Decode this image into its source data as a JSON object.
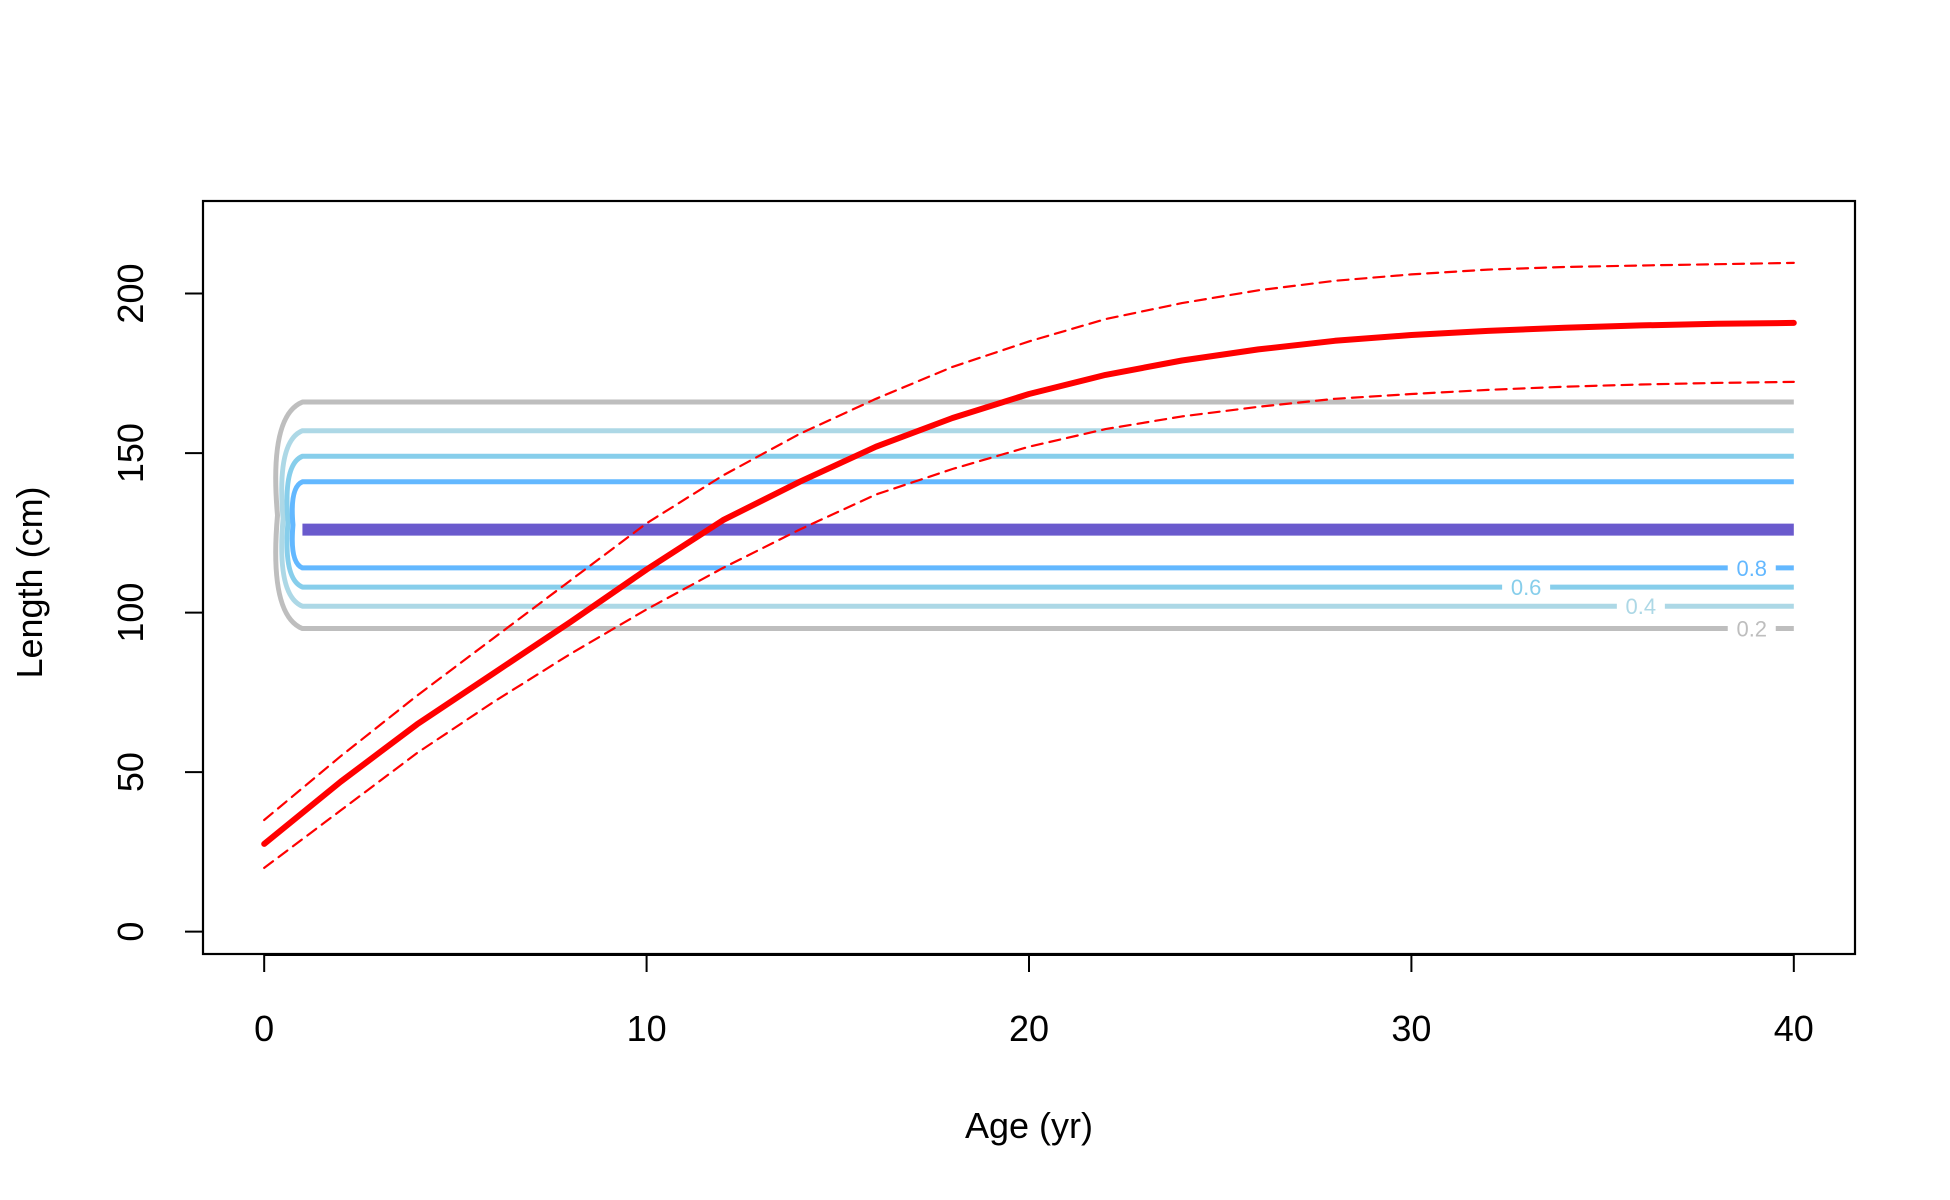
{
  "chart_data": {
    "type": "line",
    "title": "",
    "xlabel": "Age (yr)",
    "ylabel": "Length (cm)",
    "xlim": [
      -1.6,
      41.6
    ],
    "ylim": [
      -7,
      229
    ],
    "xticks": [
      0,
      10,
      20,
      30,
      40
    ],
    "yticks": [
      0,
      50,
      100,
      150,
      200
    ],
    "grid": false,
    "series": [
      {
        "style": "solid-thick",
        "color": "#ff0000",
        "points": [
          [
            0,
            27.5
          ],
          [
            2,
            47
          ],
          [
            4,
            65
          ],
          [
            6,
            81
          ],
          [
            8,
            97
          ],
          [
            10,
            113.5
          ],
          [
            12,
            129
          ],
          [
            14,
            141
          ],
          [
            16,
            152
          ],
          [
            18,
            161
          ],
          [
            20,
            168.5
          ],
          [
            22,
            174.5
          ],
          [
            24,
            179
          ],
          [
            26,
            182.5
          ],
          [
            28,
            185.2
          ],
          [
            30,
            187
          ],
          [
            32,
            188.3
          ],
          [
            34,
            189.3
          ],
          [
            36,
            190
          ],
          [
            38,
            190.5
          ],
          [
            40,
            190.8
          ]
        ]
      },
      {
        "style": "dashed",
        "color": "#ff0000",
        "points": [
          [
            0,
            35
          ],
          [
            2,
            55
          ],
          [
            4,
            74
          ],
          [
            6,
            92
          ],
          [
            8,
            110
          ],
          [
            10,
            128
          ],
          [
            12,
            143
          ],
          [
            14,
            156
          ],
          [
            16,
            167
          ],
          [
            18,
            177
          ],
          [
            20,
            185
          ],
          [
            22,
            192
          ],
          [
            24,
            197
          ],
          [
            26,
            201
          ],
          [
            28,
            204
          ],
          [
            30,
            206
          ],
          [
            32,
            207.5
          ],
          [
            34,
            208.3
          ],
          [
            36,
            208.8
          ],
          [
            38,
            209.2
          ],
          [
            40,
            209.6
          ]
        ]
      },
      {
        "style": "dashed",
        "color": "#ff0000",
        "points": [
          [
            0,
            20
          ],
          [
            2,
            38
          ],
          [
            4,
            56
          ],
          [
            6,
            72
          ],
          [
            8,
            87
          ],
          [
            10,
            101
          ],
          [
            12,
            114
          ],
          [
            14,
            126
          ],
          [
            16,
            137
          ],
          [
            18,
            145
          ],
          [
            20,
            152
          ],
          [
            22,
            157.5
          ],
          [
            24,
            161.5
          ],
          [
            26,
            164.5
          ],
          [
            28,
            167
          ],
          [
            30,
            168.5
          ],
          [
            32,
            169.8
          ],
          [
            34,
            170.8
          ],
          [
            36,
            171.5
          ],
          [
            38,
            172
          ],
          [
            40,
            172.3
          ]
        ]
      }
    ],
    "contours": [
      {
        "level": "0.2",
        "label": "0.2",
        "color": "#bebebe",
        "upper": 166,
        "lower": 95,
        "x_start": 1,
        "x_end": 40
      },
      {
        "level": "0.4",
        "label": "0.4",
        "color": "#add8e6",
        "upper": 157,
        "lower": 102,
        "x_start": 1,
        "x_end": 40
      },
      {
        "level": "0.6",
        "label": "0.6",
        "color": "#87ceeb",
        "upper": 149,
        "lower": 108,
        "x_start": 1,
        "x_end": 40
      },
      {
        "level": "0.8",
        "label": "0.8",
        "color": "#63b8ff",
        "upper": 141,
        "lower": 114,
        "x_start": 1,
        "x_end": 40
      },
      {
        "level": "1",
        "label": "",
        "color": "#6a5acd",
        "upper": 126,
        "lower": 126,
        "x_start": 1,
        "x_end": 40
      }
    ]
  }
}
